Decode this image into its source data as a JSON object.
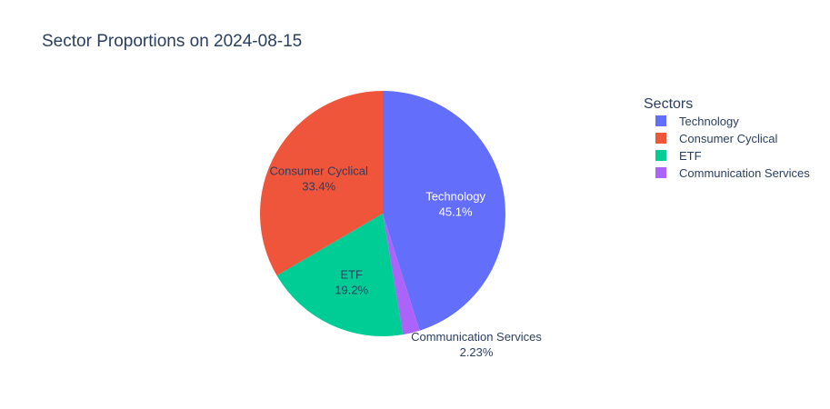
{
  "chart_data": {
    "type": "pie",
    "title": "Sector Proportions on 2024-08-15",
    "legend_title": "Sectors",
    "legend_placement": "right",
    "slices": [
      {
        "name": "Technology",
        "percent": 45.1,
        "percent_label": "45.1%",
        "color": "#636efa",
        "label_color": "#ffffff"
      },
      {
        "name": "Communication Services",
        "percent": 2.23,
        "percent_label": "2.23%",
        "color": "#ab63fa",
        "label_color": "#2a3f5f"
      },
      {
        "name": "ETF",
        "percent": 19.2,
        "percent_label": "19.2%",
        "color": "#00cc96",
        "label_color": "#2a3f5f"
      },
      {
        "name": "Consumer Cyclical",
        "percent": 33.4,
        "percent_label": "33.4%",
        "color": "#ef553b",
        "label_color": "#2a3f5f"
      }
    ],
    "legend_order": [
      "Technology",
      "Consumer Cyclical",
      "ETF",
      "Communication Services"
    ]
  }
}
